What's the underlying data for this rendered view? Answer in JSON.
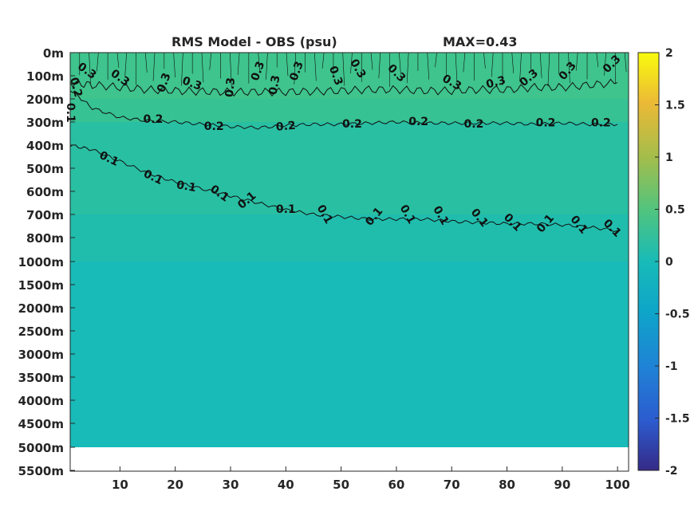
{
  "chart_data": {
    "type": "heatmap",
    "title_left": "RMS Model - OBS (psu)",
    "title_right": "MAX=0.43",
    "x_ticks": [
      "10",
      "20",
      "30",
      "40",
      "50",
      "60",
      "70",
      "80",
      "90",
      "100"
    ],
    "x_tick_values": [
      10,
      20,
      30,
      40,
      50,
      60,
      70,
      80,
      90,
      100
    ],
    "xlim": [
      1,
      102
    ],
    "y_ticks": [
      "0m",
      "100m",
      "200m",
      "300m",
      "400m",
      "500m",
      "600m",
      "700m",
      "800m",
      "1000m",
      "1500m",
      "2000m",
      "2500m",
      "3000m",
      "3500m",
      "4000m",
      "4500m",
      "5000m",
      "5500m"
    ],
    "colorbar": {
      "ticks": [
        "2",
        "1.5",
        "1",
        "0.5",
        "0",
        "-0.5",
        "-1",
        "-1.5",
        "-2"
      ],
      "tick_values": [
        2,
        1.5,
        1,
        0.5,
        0,
        -0.5,
        -1,
        -1.5,
        -2
      ],
      "range": [
        -2,
        2
      ],
      "colormap": "parula"
    },
    "field_colors": {
      "band_0_200m": "#3ec48c",
      "band_200_300m": "#36c293",
      "band_300_700m": "#29bfa3",
      "band_700_1000m": "#20bdad",
      "band_deep": "#18bbb8",
      "no_data": "#ffffff"
    },
    "contours": [
      {
        "level": "0.3",
        "x": [
          1,
          5,
          10,
          15,
          20,
          25,
          30,
          35,
          40,
          45,
          50,
          55,
          60,
          65,
          70,
          75,
          80,
          85,
          90,
          95,
          100
        ],
        "y_m": [
          130,
          140,
          150,
          160,
          165,
          168,
          170,
          170,
          170,
          168,
          165,
          160,
          160,
          165,
          165,
          160,
          160,
          150,
          150,
          140,
          130
        ]
      },
      {
        "level": "0.2",
        "x": [
          1,
          5,
          10,
          15,
          20,
          25,
          30,
          35,
          40,
          45,
          50,
          55,
          60,
          65,
          70,
          75,
          80,
          85,
          90,
          95,
          100
        ],
        "y_m": [
          160,
          240,
          280,
          295,
          300,
          310,
          320,
          325,
          315,
          310,
          310,
          305,
          300,
          305,
          305,
          305,
          305,
          310,
          305,
          310,
          310
        ]
      },
      {
        "level": "0.1",
        "x": [
          1,
          5,
          10,
          15,
          20,
          25,
          30,
          35,
          40,
          45,
          50,
          55,
          60,
          65,
          70,
          75,
          80,
          85,
          90,
          95,
          100
        ],
        "y_m": [
          400,
          420,
          470,
          520,
          560,
          590,
          620,
          650,
          680,
          700,
          710,
          720,
          720,
          720,
          730,
          735,
          740,
          740,
          745,
          755,
          770
        ]
      }
    ],
    "contour_labels": [
      {
        "text": "0.3",
        "x": 4,
        "y_m": 80,
        "angle": 35
      },
      {
        "text": "0.3",
        "x": 10,
        "y_m": 110,
        "angle": 35
      },
      {
        "text": "0.3",
        "x": 18,
        "y_m": 130,
        "angle": -70
      },
      {
        "text": "0.3",
        "x": 23,
        "y_m": 135,
        "angle": 20
      },
      {
        "text": "0.3",
        "x": 30,
        "y_m": 150,
        "angle": -85
      },
      {
        "text": "0.3",
        "x": 35,
        "y_m": 80,
        "angle": -70
      },
      {
        "text": "0.3",
        "x": 38,
        "y_m": 140,
        "angle": -80
      },
      {
        "text": "0.3",
        "x": 42,
        "y_m": 80,
        "angle": -70
      },
      {
        "text": "0.3",
        "x": 49,
        "y_m": 100,
        "angle": 70
      },
      {
        "text": "0.3",
        "x": 53,
        "y_m": 70,
        "angle": 60
      },
      {
        "text": "0.3",
        "x": 60,
        "y_m": 90,
        "angle": 45
      },
      {
        "text": "0.3",
        "x": 70,
        "y_m": 130,
        "angle": 30
      },
      {
        "text": "0.3",
        "x": 78,
        "y_m": 130,
        "angle": -15
      },
      {
        "text": "0.3",
        "x": 84,
        "y_m": 110,
        "angle": -40
      },
      {
        "text": "0.3",
        "x": 91,
        "y_m": 80,
        "angle": -50
      },
      {
        "text": "0.3",
        "x": 99,
        "y_m": 50,
        "angle": -45
      },
      {
        "text": "0.2",
        "x": 2,
        "y_m": 150,
        "angle": 75
      },
      {
        "text": "0.2",
        "x": 16,
        "y_m": 290,
        "angle": 0
      },
      {
        "text": "0.2",
        "x": 27,
        "y_m": 320,
        "angle": 0
      },
      {
        "text": "0.2",
        "x": 40,
        "y_m": 320,
        "angle": -5
      },
      {
        "text": "0.2",
        "x": 52,
        "y_m": 310,
        "angle": 0
      },
      {
        "text": "0.2",
        "x": 64,
        "y_m": 300,
        "angle": 0
      },
      {
        "text": "0.2",
        "x": 74,
        "y_m": 310,
        "angle": 0
      },
      {
        "text": "0.2",
        "x": 87,
        "y_m": 305,
        "angle": 0
      },
      {
        "text": "0.2",
        "x": 97,
        "y_m": 305,
        "angle": 0
      },
      {
        "text": "0.1",
        "x": 1,
        "y_m": 260,
        "angle": 90
      },
      {
        "text": "0.1",
        "x": 8,
        "y_m": 460,
        "angle": 25
      },
      {
        "text": "0.1",
        "x": 16,
        "y_m": 540,
        "angle": 25
      },
      {
        "text": "0.1",
        "x": 22,
        "y_m": 580,
        "angle": 10
      },
      {
        "text": "0.1",
        "x": 28,
        "y_m": 610,
        "angle": 35
      },
      {
        "text": "0.1",
        "x": 33,
        "y_m": 640,
        "angle": -40
      },
      {
        "text": "0.1",
        "x": 40,
        "y_m": 680,
        "angle": 0
      },
      {
        "text": "0.1",
        "x": 47,
        "y_m": 700,
        "angle": 60
      },
      {
        "text": "0.1",
        "x": 56,
        "y_m": 710,
        "angle": -50
      },
      {
        "text": "0.1",
        "x": 62,
        "y_m": 700,
        "angle": 60
      },
      {
        "text": "0.1",
        "x": 68,
        "y_m": 705,
        "angle": 60
      },
      {
        "text": "0.1",
        "x": 75,
        "y_m": 715,
        "angle": 50
      },
      {
        "text": "0.1",
        "x": 81,
        "y_m": 735,
        "angle": 45
      },
      {
        "text": "0.1",
        "x": 87,
        "y_m": 740,
        "angle": -50
      },
      {
        "text": "0.1",
        "x": 93,
        "y_m": 745,
        "angle": 50
      },
      {
        "text": "0.1",
        "x": 99,
        "y_m": 760,
        "angle": 45
      }
    ]
  }
}
